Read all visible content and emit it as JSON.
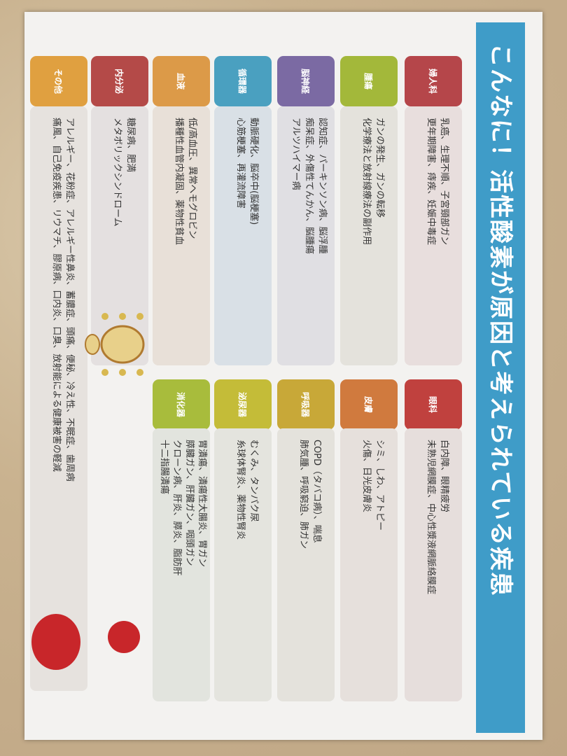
{
  "title": "こんなに！活性酸素が原因と考えられている疾患",
  "colors": {
    "title_bar": "#3f9cc8"
  },
  "left_column": [
    {
      "label": "婦人科",
      "color": "#b5464a",
      "lines": [
        "乳癌、生理不順、子宮頸部ガン",
        "更年期障害、痔疾、妊娠中毒症"
      ]
    },
    {
      "label": "腫瘍",
      "color": "#a3b83a",
      "lines": [
        "ガンの発生、ガンの転移",
        "化学療法と放射線療法の副作用"
      ]
    },
    {
      "label": "脳神経",
      "color": "#7b6aa3",
      "lines": [
        "認知症、パーキンソン病、脳浮腫",
        "痴呆症、外傷性てんかん、脳腫瘍",
        "アルツハイマー病"
      ]
    },
    {
      "label": "循環器",
      "color": "#4aa0c0",
      "lines": [
        "動脈硬化、脳卒中(脳梗塞)",
        "心筋梗塞、再灌流障害"
      ]
    },
    {
      "label": "血液",
      "color": "#dc9a48",
      "lines": [
        "低/高血圧、異常ヘモグロビン",
        "播種性血管内凝固、薬物性貧血"
      ]
    },
    {
      "label": "内分泌",
      "color": "#b44a48",
      "lines": [
        "糖尿病、肥満",
        "メタボリックシンドローム"
      ]
    },
    {
      "label": "その他",
      "color": "#e0a040",
      "lines": [
        "アレルギー、花粉症、アレルギー性鼻炎、蓄膿症、頭痛、便秘、冷え性、不眠症、歯周病",
        "痛風、自己免疫疾患、リウマチ、膠原病、口内炎、口臭、放射能による健康被害の軽減"
      ]
    }
  ],
  "right_column": [
    {
      "label": "眼科",
      "color": "#c0413e",
      "lines": [
        "白内障、眼精疲労",
        "未熟児網膜症、中心性漿液網脈絡膜症"
      ]
    },
    {
      "label": "皮膚",
      "color": "#d07a3e",
      "lines": [
        "シミ、しわ、アトピー",
        "火傷、日光皮膚炎"
      ]
    },
    {
      "label": "呼吸器",
      "color": "#c8a838",
      "lines": [
        "COPD（タバコ病）、喘息",
        "肺気腫、呼吸窮迫、肺ガン"
      ]
    },
    {
      "label": "泌尿器",
      "color": "#c4bc38",
      "lines": [
        "むくみ、タンパク尿",
        "糸球体腎炎、薬物性腎炎"
      ]
    },
    {
      "label": "消化器",
      "color": "#a8bc3c",
      "lines": [
        "胃潰瘍、潰瘍性大腸炎、胃ガン",
        "膵臓ガン、肝臓ガン、咽頭ガン",
        "クローン病、肝炎、膵炎、脂肪肝",
        "十二指腸潰瘍"
      ]
    }
  ]
}
